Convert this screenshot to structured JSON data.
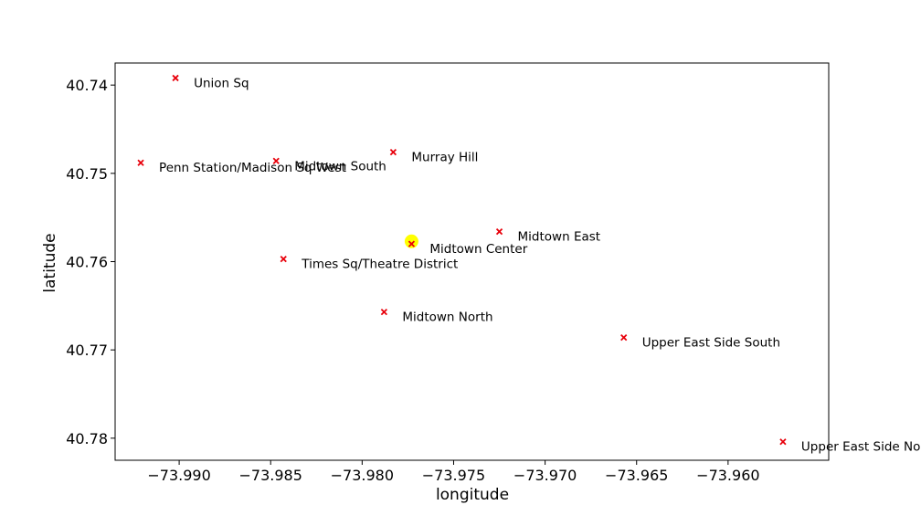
{
  "chart_data": {
    "type": "scatter",
    "title": "",
    "xlabel": "longitude",
    "ylabel": "latitude",
    "xlim": [
      -73.9935,
      -73.9545
    ],
    "ylim": [
      40.7825,
      40.7375
    ],
    "y_inverted": true,
    "grid": false,
    "xticks": [
      -73.99,
      -73.985,
      -73.98,
      -73.975,
      -73.97,
      -73.965,
      -73.96
    ],
    "xtick_labels": [
      "−73.990",
      "−73.985",
      "−73.980",
      "−73.975",
      "−73.970",
      "−73.965",
      "−73.960"
    ],
    "yticks": [
      40.74,
      40.75,
      40.76,
      40.77,
      40.78
    ],
    "ytick_labels": [
      "40.74",
      "40.75",
      "40.76",
      "40.77",
      "40.78"
    ],
    "marker": "x",
    "marker_color": "#e8000b",
    "highlight_color": "#ffff00",
    "points": [
      {
        "label": "Union Sq",
        "x": -73.9902,
        "y": 40.7392
      },
      {
        "label": "Penn Station/Madison Sq West",
        "x": -73.9921,
        "y": 40.7488
      },
      {
        "label": "Midtown South",
        "x": -73.9847,
        "y": 40.7486
      },
      {
        "label": "Murray Hill",
        "x": -73.9783,
        "y": 40.7476
      },
      {
        "label": "Midtown East",
        "x": -73.9725,
        "y": 40.7566
      },
      {
        "label": "Midtown Center",
        "x": -73.9773,
        "y": 40.758
      },
      {
        "label": "Times Sq/Theatre District",
        "x": -73.9843,
        "y": 40.7597
      },
      {
        "label": "Midtown North",
        "x": -73.9788,
        "y": 40.7657
      },
      {
        "label": "Upper East Side South",
        "x": -73.9657,
        "y": 40.7686
      },
      {
        "label": "Upper East Side North",
        "x": -73.957,
        "y": 40.7804
      }
    ],
    "highlight_point": {
      "label": "Midtown Center",
      "x": -73.9773,
      "y": 40.7577
    }
  }
}
